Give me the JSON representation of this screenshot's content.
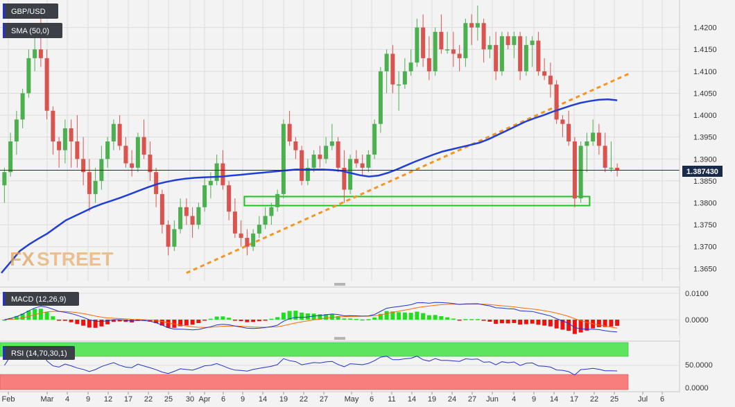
{
  "colors": {
    "background": "#f3f3f3",
    "grid": "#dcdcdc",
    "bull": "#4caf50",
    "bear": "#d9534f",
    "sma": "#1f3fd6",
    "trend": "#f5941f",
    "support": "#22c222",
    "price_line": "#1a2a4a",
    "badge_bg": "#3c3f46",
    "badge_accent": "#2233cc",
    "macd_line": "#2233cc",
    "signal_line": "#ff6a00",
    "rsi_over": "#5ee45e",
    "rsi_under": "#f87e7e",
    "rsi_line": "#2233cc",
    "watermark": "#e0a560"
  },
  "symbol": "GBP/USD",
  "indicator": "SMA (50,0)",
  "watermark": {
    "fx": "FX",
    "street": "STREET"
  },
  "current_price": "1.387430",
  "price_axis": {
    "min": 1.363,
    "max": 1.425,
    "ticks": [
      "1.4200",
      "1.4150",
      "1.4100",
      "1.4050",
      "1.4000",
      "1.3950",
      "1.3900",
      "1.3850",
      "1.3800",
      "1.3750",
      "1.3700",
      "1.3650"
    ]
  },
  "date_axis": [
    "Feb",
    "Mar",
    "4",
    "9",
    "12",
    "17",
    "22",
    "25",
    "30",
    "Apr",
    "6",
    "9",
    "14",
    "19",
    "22",
    "27",
    "May",
    "6",
    "11",
    "14",
    "19",
    "24",
    "27",
    "Jun",
    "4",
    "9",
    "14",
    "17",
    "22",
    "25",
    "Jul",
    "6"
  ],
  "macd": {
    "label": "MACD (12,26,9)",
    "ticks": [
      "0.0100",
      "0.0000"
    ]
  },
  "rsi": {
    "label": "RSI (14,70,30,1)",
    "ticks": [
      "50.0000",
      "0.0000"
    ]
  },
  "chart_data": {
    "type": "candlestick",
    "series_name": "GBP/USD",
    "candles": [
      [
        1.384,
        1.388,
        1.38,
        1.387
      ],
      [
        1.387,
        1.396,
        1.386,
        1.394
      ],
      [
        1.394,
        1.401,
        1.391,
        1.399
      ],
      [
        1.399,
        1.406,
        1.397,
        1.405
      ],
      [
        1.405,
        1.415,
        1.404,
        1.413
      ],
      [
        1.413,
        1.42,
        1.41,
        1.415
      ],
      [
        1.415,
        1.423,
        1.411,
        1.413
      ],
      [
        1.413,
        1.415,
        1.399,
        1.401
      ],
      [
        1.401,
        1.402,
        1.391,
        1.394
      ],
      [
        1.394,
        1.395,
        1.388,
        1.392
      ],
      [
        1.392,
        1.399,
        1.389,
        1.397
      ],
      [
        1.397,
        1.399,
        1.388,
        1.394
      ],
      [
        1.394,
        1.4,
        1.388,
        1.39
      ],
      [
        1.39,
        1.395,
        1.384,
        1.387
      ],
      [
        1.387,
        1.39,
        1.378,
        1.382
      ],
      [
        1.382,
        1.388,
        1.38,
        1.385
      ],
      [
        1.385,
        1.393,
        1.383,
        1.39
      ],
      [
        1.39,
        1.395,
        1.388,
        1.394
      ],
      [
        1.394,
        1.399,
        1.392,
        1.398
      ],
      [
        1.398,
        1.4,
        1.392,
        1.393
      ],
      [
        1.393,
        1.395,
        1.388,
        1.389
      ],
      [
        1.389,
        1.392,
        1.386,
        1.388
      ],
      [
        1.388,
        1.396,
        1.387,
        1.395
      ],
      [
        1.395,
        1.399,
        1.39,
        1.391
      ],
      [
        1.391,
        1.394,
        1.385,
        1.387
      ],
      [
        1.387,
        1.388,
        1.379,
        1.382
      ],
      [
        1.382,
        1.383,
        1.373,
        1.375
      ],
      [
        1.375,
        1.376,
        1.368,
        1.37
      ],
      [
        1.37,
        1.376,
        1.369,
        1.374
      ],
      [
        1.374,
        1.381,
        1.373,
        1.379
      ],
      [
        1.379,
        1.381,
        1.375,
        1.377
      ],
      [
        1.377,
        1.379,
        1.372,
        1.375
      ],
      [
        1.375,
        1.38,
        1.374,
        1.379
      ],
      [
        1.379,
        1.386,
        1.378,
        1.384
      ],
      [
        1.384,
        1.387,
        1.381,
        1.385
      ],
      [
        1.385,
        1.391,
        1.384,
        1.389
      ],
      [
        1.389,
        1.392,
        1.383,
        1.384
      ],
      [
        1.384,
        1.385,
        1.376,
        1.378
      ],
      [
        1.378,
        1.381,
        1.372,
        1.373
      ],
      [
        1.373,
        1.376,
        1.37,
        1.372
      ],
      [
        1.372,
        1.374,
        1.368,
        1.37
      ],
      [
        1.37,
        1.374,
        1.369,
        1.373
      ],
      [
        1.373,
        1.377,
        1.372,
        1.375
      ],
      [
        1.375,
        1.379,
        1.374,
        1.377
      ],
      [
        1.377,
        1.38,
        1.375,
        1.379
      ],
      [
        1.379,
        1.383,
        1.378,
        1.382
      ],
      [
        1.382,
        1.399,
        1.381,
        1.398
      ],
      [
        1.398,
        1.401,
        1.393,
        1.394
      ],
      [
        1.394,
        1.395,
        1.39,
        1.392
      ],
      [
        1.392,
        1.393,
        1.384,
        1.385
      ],
      [
        1.385,
        1.39,
        1.384,
        1.388
      ],
      [
        1.388,
        1.392,
        1.387,
        1.391
      ],
      [
        1.391,
        1.393,
        1.388,
        1.39
      ],
      [
        1.39,
        1.395,
        1.389,
        1.393
      ],
      [
        1.393,
        1.398,
        1.392,
        1.394
      ],
      [
        1.394,
        1.395,
        1.387,
        1.388
      ],
      [
        1.388,
        1.392,
        1.38,
        1.383
      ],
      [
        1.383,
        1.391,
        1.382,
        1.39
      ],
      [
        1.39,
        1.392,
        1.388,
        1.389
      ],
      [
        1.389,
        1.391,
        1.386,
        1.388
      ],
      [
        1.388,
        1.392,
        1.387,
        1.391
      ],
      [
        1.391,
        1.399,
        1.39,
        1.398
      ],
      [
        1.398,
        1.411,
        1.396,
        1.41
      ],
      [
        1.41,
        1.415,
        1.405,
        1.414
      ],
      [
        1.414,
        1.416,
        1.405,
        1.407
      ],
      [
        1.407,
        1.41,
        1.401,
        1.407
      ],
      [
        1.407,
        1.413,
        1.406,
        1.41
      ],
      [
        1.41,
        1.415,
        1.409,
        1.412
      ],
      [
        1.412,
        1.422,
        1.411,
        1.42
      ],
      [
        1.42,
        1.423,
        1.411,
        1.413
      ],
      [
        1.413,
        1.418,
        1.408,
        1.41
      ],
      [
        1.41,
        1.42,
        1.409,
        1.419
      ],
      [
        1.419,
        1.423,
        1.414,
        1.415
      ],
      [
        1.415,
        1.419,
        1.414,
        1.415
      ],
      [
        1.415,
        1.419,
        1.411,
        1.414
      ],
      [
        1.414,
        1.416,
        1.41,
        1.413
      ],
      [
        1.413,
        1.422,
        1.411,
        1.421
      ],
      [
        1.421,
        1.423,
        1.416,
        1.42
      ],
      [
        1.42,
        1.425,
        1.417,
        1.421
      ],
      [
        1.421,
        1.422,
        1.412,
        1.415
      ],
      [
        1.415,
        1.418,
        1.413,
        1.416
      ],
      [
        1.416,
        1.419,
        1.408,
        1.41
      ],
      [
        1.41,
        1.419,
        1.409,
        1.418
      ],
      [
        1.418,
        1.419,
        1.415,
        1.416
      ],
      [
        1.416,
        1.419,
        1.413,
        1.418
      ],
      [
        1.418,
        1.419,
        1.408,
        1.41
      ],
      [
        1.41,
        1.418,
        1.409,
        1.416
      ],
      [
        1.416,
        1.418,
        1.411,
        1.417
      ],
      [
        1.417,
        1.419,
        1.409,
        1.41
      ],
      [
        1.41,
        1.413,
        1.408,
        1.409
      ],
      [
        1.409,
        1.412,
        1.404,
        1.407
      ],
      [
        1.407,
        1.408,
        1.398,
        1.399
      ],
      [
        1.399,
        1.4,
        1.395,
        1.398
      ],
      [
        1.398,
        1.401,
        1.393,
        1.394
      ],
      [
        1.394,
        1.395,
        1.379,
        1.381
      ],
      [
        1.381,
        1.394,
        1.38,
        1.393
      ],
      [
        1.393,
        1.396,
        1.387,
        1.394
      ],
      [
        1.394,
        1.399,
        1.393,
        1.396
      ],
      [
        1.396,
        1.398,
        1.391,
        1.393
      ],
      [
        1.393,
        1.396,
        1.387,
        1.388
      ],
      [
        1.388,
        1.394,
        1.387,
        1.388
      ],
      [
        1.388,
        1.389,
        1.386,
        1.3874
      ]
    ],
    "sma_50": [
      1.364,
      1.3665,
      1.369,
      1.3705,
      1.3718,
      1.373,
      1.3745,
      1.376,
      1.377,
      1.378,
      1.379,
      1.3798,
      1.3805,
      1.3812,
      1.382,
      1.3828,
      1.3836,
      1.3843,
      1.3848,
      1.3852,
      1.3855,
      1.3857,
      1.3858,
      1.3859,
      1.386,
      1.3862,
      1.3864,
      1.3866,
      1.3868,
      1.387,
      1.3872,
      1.3874,
      1.3876,
      1.3876,
      1.3876,
      1.3876,
      1.3875,
      1.3873,
      1.3868,
      1.3863,
      1.386,
      1.3862,
      1.3868,
      1.3876,
      1.3885,
      1.3894,
      1.3902,
      1.391,
      1.3917,
      1.3922,
      1.3927,
      1.3932,
      1.3937,
      1.3945,
      1.3955,
      1.3965,
      1.3975,
      1.3985,
      1.3993,
      1.4,
      1.4008,
      1.4015,
      1.4022,
      1.4028,
      1.4032,
      1.4035,
      1.4036,
      1.4034
    ],
    "trendline": {
      "from": [
        30,
        1.364
      ],
      "to": [
        103,
        1.4095
      ]
    },
    "support_zone": {
      "from_index": 40,
      "to_index": 96,
      "low": 1.38,
      "high": 1.3808
    }
  }
}
